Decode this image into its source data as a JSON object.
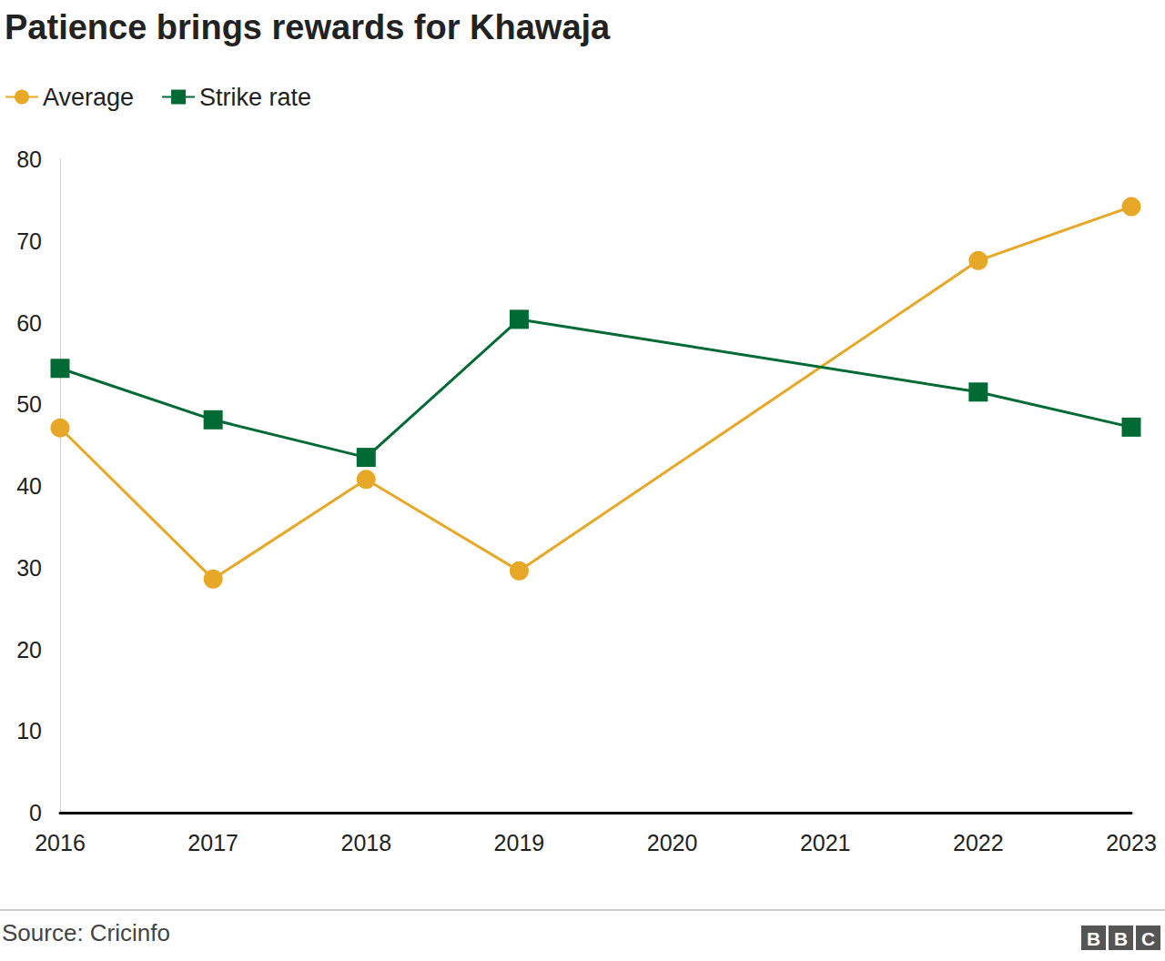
{
  "chart_data": {
    "type": "line",
    "title": "Patience brings rewards for Khawaja",
    "source": "Source: Cricinfo",
    "logo": "BBC",
    "x": [
      2016,
      2017,
      2018,
      2019,
      2022,
      2023
    ],
    "series": [
      {
        "name": "Average",
        "color": "#e6a826",
        "marker": "circle",
        "values": [
          47.1,
          28.6,
          40.8,
          29.6,
          67.6,
          74.2
        ]
      },
      {
        "name": "Strike rate",
        "color": "#006a34",
        "marker": "square",
        "values": [
          54.4,
          48.1,
          43.5,
          60.4,
          51.5,
          47.2
        ]
      }
    ],
    "xlim": [
      2016,
      2023
    ],
    "xticks": [
      2016,
      2017,
      2018,
      2019,
      2020,
      2021,
      2022,
      2023
    ],
    "ylim": [
      0,
      80
    ],
    "yticks": [
      0,
      10,
      20,
      30,
      40,
      50,
      60,
      70,
      80
    ],
    "grid": false,
    "legend": "top-left"
  }
}
